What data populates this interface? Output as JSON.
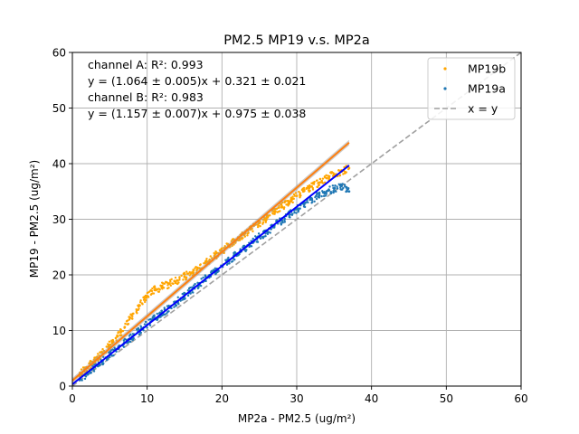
{
  "chart_data": {
    "type": "scatter",
    "title": "PM2.5 MP19 v.s. MP2a",
    "xlabel": "MP2a - PM2.5 (ug/m²)",
    "ylabel": "MP19 - PM2.5 (ug/m²)",
    "xlim": [
      0,
      60
    ],
    "ylim": [
      0,
      60
    ],
    "xticks": [
      "0",
      "10",
      "20",
      "30",
      "40",
      "50",
      "60"
    ],
    "yticks": [
      "0",
      "10",
      "20",
      "30",
      "40",
      "50",
      "60"
    ],
    "grid": true,
    "legend_position": "top-right",
    "annotations": [
      "channel A: R²: 0.993",
      "y = (1.064 ± 0.005)x + 0.321 ± 0.021",
      "channel B: R²: 0.983",
      "y = (1.157 ± 0.007)x + 0.975 ± 0.038"
    ],
    "series": [
      {
        "name": "MP19b",
        "kind": "scatter",
        "color": "#ffa500",
        "points": [
          [
            1,
            2.1
          ],
          [
            2,
            3.3
          ],
          [
            3,
            4.6
          ],
          [
            4,
            6.0
          ],
          [
            5,
            7.4
          ],
          [
            6,
            8.9
          ],
          [
            7,
            10.6
          ],
          [
            8,
            12.6
          ],
          [
            9,
            14.5
          ],
          [
            10,
            16.2
          ],
          [
            11,
            17.3
          ],
          [
            12,
            17.9
          ],
          [
            13,
            18.4
          ],
          [
            14,
            19.0
          ],
          [
            15,
            19.7
          ],
          [
            16,
            20.4
          ],
          [
            17,
            21.2
          ],
          [
            18,
            22.3
          ],
          [
            19,
            23.4
          ],
          [
            20,
            24.3
          ],
          [
            21,
            25.3
          ],
          [
            22,
            26.3
          ],
          [
            23,
            27.2
          ],
          [
            24,
            28.3
          ],
          [
            25,
            29.3
          ],
          [
            26,
            30.3
          ],
          [
            27,
            31.4
          ],
          [
            28,
            32.3
          ],
          [
            29,
            33.2
          ],
          [
            30,
            34.2
          ],
          [
            31,
            35.1
          ],
          [
            32,
            35.9
          ],
          [
            33,
            36.6
          ],
          [
            34,
            37.4
          ],
          [
            35,
            38.1
          ],
          [
            36,
            38.6
          ],
          [
            37,
            39.2
          ]
        ]
      },
      {
        "name": "MP19a",
        "kind": "scatter",
        "color": "#1f77b4",
        "points": [
          [
            1,
            1.1
          ],
          [
            2,
            2.3
          ],
          [
            3,
            3.4
          ],
          [
            4,
            4.5
          ],
          [
            5,
            5.6
          ],
          [
            6,
            6.7
          ],
          [
            7,
            7.8
          ],
          [
            8,
            8.9
          ],
          [
            9,
            10.0
          ],
          [
            10,
            11.1
          ],
          [
            11,
            12.1
          ],
          [
            12,
            13.2
          ],
          [
            13,
            14.1
          ],
          [
            14,
            15.2
          ],
          [
            15,
            16.3
          ],
          [
            16,
            17.3
          ],
          [
            17,
            18.5
          ],
          [
            18,
            19.5
          ],
          [
            19,
            20.6
          ],
          [
            20,
            21.6
          ],
          [
            21,
            22.7
          ],
          [
            22,
            23.7
          ],
          [
            23,
            24.7
          ],
          [
            24,
            25.8
          ],
          [
            25,
            26.8
          ],
          [
            26,
            27.8
          ],
          [
            27,
            28.8
          ],
          [
            28,
            29.8
          ],
          [
            29,
            30.8
          ],
          [
            30,
            31.8
          ],
          [
            31,
            32.8
          ],
          [
            32,
            33.6
          ],
          [
            33,
            34.3
          ],
          [
            34,
            35.0
          ],
          [
            35,
            35.5
          ],
          [
            36,
            36.0
          ],
          [
            37,
            35.0
          ]
        ]
      },
      {
        "name": "MP19b fit",
        "kind": "line",
        "color": "#ff7f0e",
        "x": [
          0,
          37
        ],
        "y": [
          0.975,
          43.784
        ]
      },
      {
        "name": "MP19a fit",
        "kind": "line",
        "color": "#0000ff",
        "x": [
          0,
          37
        ],
        "y": [
          0.321,
          39.689
        ]
      },
      {
        "name": "x = y",
        "kind": "line",
        "style": "dashed",
        "color": "#a0a0a0",
        "x": [
          0,
          60
        ],
        "y": [
          0,
          60
        ]
      }
    ],
    "legend": [
      "MP19b",
      "MP19a",
      "x = y"
    ]
  }
}
